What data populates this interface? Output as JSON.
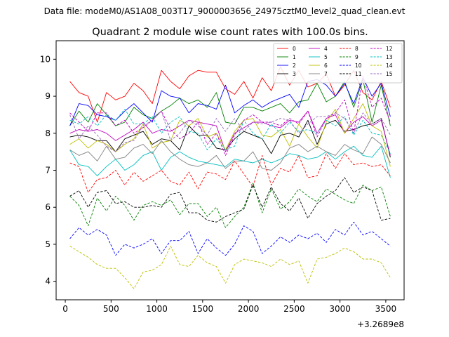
{
  "chart_data": {
    "type": "line",
    "suptitle": "Data file: modeM0/AS1A08_003T17_9000003656_24975cztM0_level2_quad_clean.evt",
    "title": "Quadrant 2 module wise count rates with 100.0s bins.",
    "xlabel": "",
    "ylabel": "",
    "x_offset_label": "+3.2689e8",
    "xlim": [
      -100,
      3700
    ],
    "ylim": [
      3.5,
      10.5
    ],
    "xticks": [
      0,
      500,
      1000,
      1500,
      2000,
      2500,
      3000,
      3500
    ],
    "yticks": [
      4,
      5,
      6,
      7,
      8,
      9,
      10
    ],
    "x": [
      50,
      150,
      250,
      350,
      450,
      550,
      650,
      750,
      850,
      950,
      1050,
      1150,
      1250,
      1350,
      1450,
      1550,
      1650,
      1750,
      1850,
      1950,
      2050,
      2150,
      2250,
      2350,
      2450,
      2550,
      2650,
      2750,
      2850,
      2950,
      3050,
      3150,
      3250,
      3350,
      3450,
      3550
    ],
    "series": [
      {
        "name": "0",
        "color": "#ff0000",
        "dash": "solid",
        "values": [
          9.4,
          9.1,
          9.0,
          8.3,
          9.1,
          8.9,
          9.0,
          9.35,
          9.15,
          8.8,
          9.7,
          9.4,
          9.2,
          9.55,
          9.7,
          9.65,
          9.65,
          9.2,
          9.05,
          9.4,
          8.95,
          9.5,
          9.15,
          9.8,
          9.3,
          9.7,
          9.25,
          9.35,
          9.6,
          9.0,
          9.3,
          9.7,
          9.1,
          8.9,
          9.4,
          8.7
        ]
      },
      {
        "name": "1",
        "color": "#008000",
        "dash": "solid",
        "values": [
          8.2,
          8.6,
          8.3,
          8.8,
          8.5,
          8.2,
          8.3,
          8.7,
          8.5,
          8.4,
          8.6,
          8.75,
          8.95,
          8.8,
          8.9,
          8.7,
          9.1,
          8.3,
          8.25,
          8.7,
          8.7,
          8.6,
          8.7,
          8.8,
          8.55,
          8.85,
          8.9,
          9.35,
          8.85,
          9.0,
          9.4,
          8.7,
          9.45,
          8.3,
          9.3,
          8.2
        ]
      },
      {
        "name": "2",
        "color": "#0000ff",
        "dash": "solid",
        "values": [
          8.2,
          8.8,
          8.75,
          8.5,
          8.45,
          8.35,
          8.6,
          8.8,
          8.55,
          8.3,
          9.15,
          9.0,
          8.95,
          8.55,
          8.8,
          8.75,
          8.65,
          9.3,
          8.55,
          8.75,
          8.9,
          8.7,
          8.85,
          8.95,
          9.05,
          8.7,
          9.4,
          9.45,
          9.3,
          9.0,
          9.35,
          8.8,
          9.5,
          9.0,
          9.35,
          8.45
        ]
      },
      {
        "name": "3",
        "color": "#000000",
        "dash": "solid",
        "values": [
          7.9,
          7.95,
          7.9,
          7.8,
          7.8,
          7.5,
          7.85,
          7.95,
          8.05,
          7.7,
          7.85,
          7.8,
          7.55,
          8.2,
          7.95,
          7.95,
          7.6,
          7.55,
          7.85,
          8.05,
          7.95,
          7.85,
          7.45,
          7.95,
          8.0,
          7.9,
          8.35,
          7.7,
          8.25,
          8.35,
          8.05,
          8.1,
          8.2,
          8.25,
          8.4,
          7.35
        ]
      },
      {
        "name": "4",
        "color": "#bf00bf",
        "dash": "solid",
        "values": [
          8.0,
          8.1,
          8.05,
          8.1,
          8.0,
          7.8,
          7.95,
          8.1,
          8.3,
          8.0,
          8.1,
          8.05,
          8.2,
          8.35,
          8.3,
          8.25,
          8.2,
          7.5,
          8.0,
          8.15,
          8.3,
          8.3,
          8.2,
          8.15,
          8.35,
          8.3,
          8.6,
          8.0,
          8.4,
          8.5,
          8.0,
          8.3,
          8.45,
          8.2,
          8.35,
          7.4
        ]
      },
      {
        "name": "5",
        "color": "#00bfbf",
        "dash": "solid",
        "values": [
          7.55,
          7.15,
          7.1,
          6.85,
          7.1,
          7.3,
          7.0,
          7.15,
          7.4,
          7.5,
          7.0,
          7.35,
          7.5,
          7.35,
          7.25,
          7.2,
          7.15,
          7.1,
          7.3,
          7.25,
          7.2,
          7.3,
          7.2,
          7.3,
          7.45,
          7.4,
          7.3,
          7.35,
          7.5,
          7.3,
          7.5,
          7.65,
          7.4,
          7.35,
          7.65,
          6.8
        ]
      },
      {
        "name": "6",
        "color": "#bfbf00",
        "dash": "solid",
        "values": [
          7.7,
          7.85,
          7.6,
          7.8,
          7.7,
          7.5,
          7.7,
          7.85,
          8.25,
          7.6,
          7.75,
          7.8,
          8.35,
          8.2,
          8.4,
          7.9,
          8.0,
          7.55,
          8.05,
          8.35,
          8.4,
          7.95,
          7.9,
          8.1,
          7.65,
          8.25,
          7.9,
          7.6,
          8.3,
          8.65,
          8.0,
          8.4,
          8.8,
          8.2,
          8.05,
          7.1
        ]
      },
      {
        "name": "7",
        "color": "#808080",
        "dash": "solid",
        "values": [
          7.55,
          7.4,
          7.5,
          7.25,
          7.65,
          7.3,
          7.35,
          7.6,
          7.7,
          7.45,
          7.8,
          7.5,
          7.3,
          7.15,
          7.1,
          7.2,
          7.4,
          7.05,
          7.25,
          7.25,
          7.5,
          7.05,
          7.0,
          7.2,
          7.6,
          7.7,
          7.5,
          7.65,
          7.5,
          7.4,
          7.7,
          7.55,
          7.45,
          7.9,
          7.7,
          7.2
        ]
      },
      {
        "name": "8",
        "color": "#ff0000",
        "dash": "dashed",
        "values": [
          7.2,
          7.1,
          6.4,
          6.75,
          6.8,
          7.0,
          6.6,
          6.95,
          6.7,
          6.85,
          7.0,
          6.7,
          6.6,
          6.95,
          6.5,
          6.95,
          6.9,
          6.75,
          7.25,
          6.9,
          6.55,
          7.4,
          6.6,
          7.05,
          6.95,
          7.4,
          6.8,
          6.85,
          7.45,
          7.05,
          7.45,
          7.15,
          7.2,
          7.1,
          7.15,
          6.85
        ]
      },
      {
        "name": "9",
        "color": "#008000",
        "dash": "dashed",
        "values": [
          6.3,
          6.05,
          5.5,
          6.25,
          5.9,
          6.3,
          6.05,
          5.65,
          6.05,
          6.15,
          6.05,
          6.2,
          5.8,
          6.1,
          6.1,
          5.75,
          6.0,
          5.45,
          5.75,
          6.0,
          6.65,
          5.85,
          6.5,
          5.95,
          6.15,
          6.5,
          6.3,
          6.15,
          6.5,
          6.35,
          6.2,
          6.1,
          6.6,
          6.45,
          6.55,
          5.75
        ]
      },
      {
        "name": "10",
        "color": "#0000ff",
        "dash": "dashed",
        "values": [
          5.15,
          5.45,
          5.25,
          5.4,
          5.25,
          4.7,
          5.0,
          4.9,
          5.0,
          5.15,
          4.75,
          5.1,
          5.1,
          5.35,
          4.75,
          5.15,
          4.9,
          4.7,
          5.0,
          5.5,
          5.35,
          4.75,
          4.95,
          5.2,
          5.05,
          5.25,
          5.15,
          5.3,
          5.05,
          5.4,
          5.25,
          5.6,
          5.25,
          5.35,
          5.15,
          4.95
        ]
      },
      {
        "name": "11",
        "color": "#000000",
        "dash": "dashed",
        "values": [
          6.3,
          6.45,
          6.0,
          6.4,
          6.45,
          6.1,
          6.15,
          6.0,
          6.0,
          6.05,
          6.0,
          6.35,
          6.4,
          5.85,
          5.85,
          5.65,
          5.6,
          5.75,
          5.85,
          5.95,
          6.6,
          6.0,
          6.55,
          6.1,
          5.9,
          6.25,
          5.7,
          6.1,
          6.3,
          6.45,
          6.8,
          6.4,
          6.55,
          6.45,
          5.65,
          5.7
        ]
      },
      {
        "name": "12",
        "color": "#bf00bf",
        "dash": "dashed",
        "values": [
          8.55,
          8.3,
          8.05,
          8.55,
          8.55,
          8.2,
          8.35,
          8.0,
          8.15,
          8.35,
          8.6,
          8.1,
          7.85,
          8.0,
          8.3,
          7.7,
          8.0,
          7.4,
          7.95,
          8.35,
          8.5,
          8.3,
          8.3,
          8.2,
          8.4,
          8.25,
          8.6,
          7.9,
          8.4,
          8.55,
          8.9,
          8.0,
          9.55,
          8.7,
          8.95,
          8.3
        ]
      },
      {
        "name": "13",
        "color": "#00bfbf",
        "dash": "dashed",
        "values": [
          8.35,
          8.25,
          8.45,
          8.2,
          8.5,
          8.35,
          8.65,
          8.25,
          8.25,
          8.45,
          8.0,
          8.3,
          8.45,
          8.05,
          8.0,
          7.55,
          7.85,
          7.55,
          7.65,
          8.35,
          8.0,
          7.85,
          8.25,
          8.0,
          8.3,
          8.05,
          8.1,
          8.0,
          8.35,
          8.2,
          8.45,
          7.95,
          8.35,
          8.0,
          7.95,
          7.45
        ]
      },
      {
        "name": "14",
        "color": "#bfbf00",
        "dash": "dashed",
        "values": [
          4.95,
          4.8,
          4.65,
          4.45,
          4.35,
          4.35,
          4.1,
          3.8,
          4.25,
          4.3,
          4.45,
          4.95,
          4.45,
          4.4,
          4.7,
          4.5,
          4.4,
          3.95,
          4.45,
          4.6,
          4.55,
          4.5,
          4.4,
          4.6,
          4.45,
          4.55,
          3.95,
          4.6,
          4.65,
          4.75,
          4.9,
          4.8,
          4.6,
          4.6,
          4.5,
          4.1
        ]
      },
      {
        "name": "15",
        "color": "#9467bd",
        "dash": "dashed",
        "values": [
          8.5,
          7.85,
          8.2,
          7.95,
          7.65,
          7.5,
          7.75,
          7.8,
          8.2,
          8.35,
          8.6,
          7.8,
          8.0,
          8.35,
          8.2,
          7.95,
          8.4,
          8.05,
          8.4,
          8.05,
          8.3,
          8.25,
          8.3,
          8.4,
          8.35,
          8.0,
          8.25,
          8.45,
          8.45,
          8.55,
          8.4,
          8.0,
          8.55,
          8.25,
          8.4,
          7.95
        ]
      }
    ]
  }
}
